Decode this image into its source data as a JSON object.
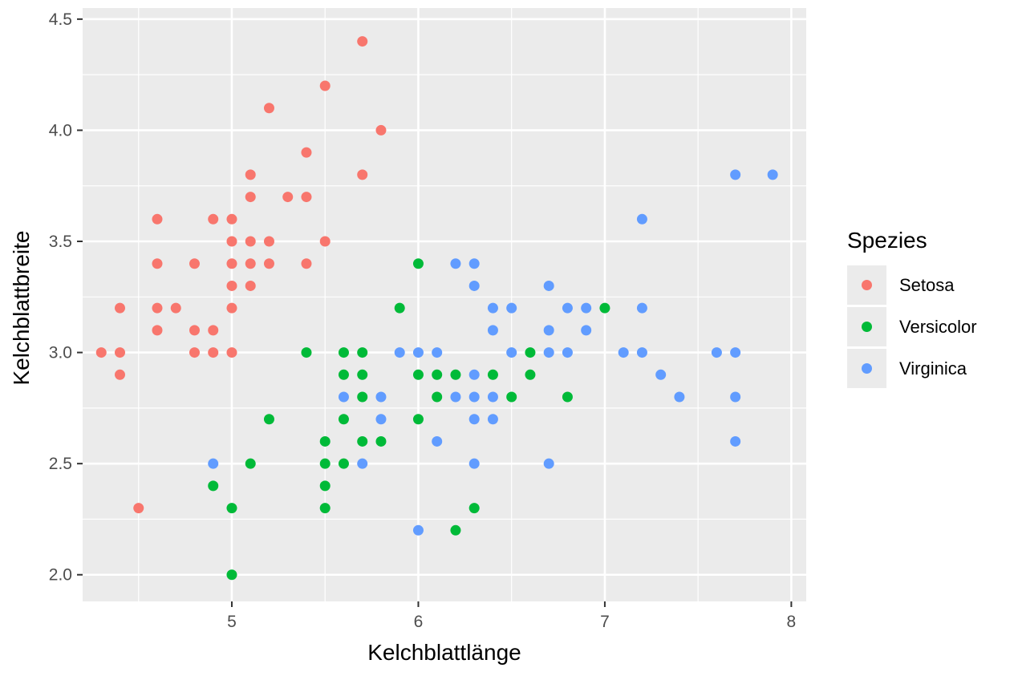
{
  "chart_data": {
    "type": "scatter",
    "xlabel": "Kelchblattlänge",
    "ylabel": "Kelchblattbreite",
    "xlim": [
      4.2,
      8.08
    ],
    "ylim": [
      1.88,
      4.55
    ],
    "x_ticks": [
      5,
      6,
      7,
      8
    ],
    "x_tick_labels": [
      "5",
      "6",
      "7",
      "8"
    ],
    "y_ticks": [
      2.0,
      2.5,
      3.0,
      3.5,
      4.0,
      4.5
    ],
    "y_tick_labels": [
      "2.0",
      "2.5",
      "3.0",
      "3.5",
      "4.0",
      "4.5"
    ],
    "grid": true,
    "panel_background": "#ebebeb",
    "legend": {
      "title": "Spezies",
      "placement": "right"
    },
    "series": [
      {
        "name": "Setosa",
        "color": "#f8766d",
        "points": [
          [
            4.3,
            3.0
          ],
          [
            4.4,
            2.9
          ],
          [
            4.4,
            3.0
          ],
          [
            4.4,
            3.2
          ],
          [
            4.5,
            2.3
          ],
          [
            4.6,
            3.1
          ],
          [
            4.6,
            3.2
          ],
          [
            4.6,
            3.4
          ],
          [
            4.6,
            3.6
          ],
          [
            4.7,
            3.2
          ],
          [
            4.8,
            3.0
          ],
          [
            4.8,
            3.1
          ],
          [
            4.8,
            3.4
          ],
          [
            4.9,
            3.0
          ],
          [
            4.9,
            3.1
          ],
          [
            4.9,
            3.6
          ],
          [
            5.0,
            3.0
          ],
          [
            5.0,
            3.2
          ],
          [
            5.0,
            3.3
          ],
          [
            5.0,
            3.4
          ],
          [
            5.0,
            3.5
          ],
          [
            5.0,
            3.6
          ],
          [
            5.1,
            3.3
          ],
          [
            5.1,
            3.4
          ],
          [
            5.1,
            3.5
          ],
          [
            5.1,
            3.7
          ],
          [
            5.1,
            3.8
          ],
          [
            5.2,
            3.4
          ],
          [
            5.2,
            3.5
          ],
          [
            5.2,
            4.1
          ],
          [
            5.3,
            3.7
          ],
          [
            5.4,
            3.4
          ],
          [
            5.4,
            3.7
          ],
          [
            5.4,
            3.9
          ],
          [
            5.5,
            3.5
          ],
          [
            5.5,
            4.2
          ],
          [
            5.7,
            3.8
          ],
          [
            5.7,
            4.4
          ],
          [
            5.8,
            4.0
          ]
        ]
      },
      {
        "name": "Versicolor",
        "color": "#00ba38",
        "points": [
          [
            4.9,
            2.4
          ],
          [
            5.0,
            2.0
          ],
          [
            5.0,
            2.3
          ],
          [
            5.1,
            2.5
          ],
          [
            5.2,
            2.7
          ],
          [
            5.4,
            3.0
          ],
          [
            5.5,
            2.3
          ],
          [
            5.5,
            2.4
          ],
          [
            5.5,
            2.5
          ],
          [
            5.5,
            2.6
          ],
          [
            5.6,
            2.5
          ],
          [
            5.6,
            2.7
          ],
          [
            5.6,
            2.9
          ],
          [
            5.6,
            3.0
          ],
          [
            5.7,
            2.6
          ],
          [
            5.7,
            2.8
          ],
          [
            5.7,
            2.9
          ],
          [
            5.7,
            3.0
          ],
          [
            5.8,
            2.6
          ],
          [
            5.9,
            3.2
          ],
          [
            6.0,
            2.7
          ],
          [
            6.0,
            2.9
          ],
          [
            6.0,
            3.4
          ],
          [
            6.1,
            2.8
          ],
          [
            6.1,
            2.9
          ],
          [
            6.2,
            2.2
          ],
          [
            6.2,
            2.9
          ],
          [
            6.3,
            2.3
          ],
          [
            6.4,
            2.9
          ],
          [
            6.5,
            2.8
          ],
          [
            6.6,
            2.9
          ],
          [
            6.6,
            3.0
          ],
          [
            6.8,
            2.8
          ],
          [
            7.0,
            3.2
          ]
        ]
      },
      {
        "name": "Virginica",
        "color": "#619cff",
        "points": [
          [
            4.9,
            2.5
          ],
          [
            5.6,
            2.8
          ],
          [
            5.7,
            2.5
          ],
          [
            5.8,
            2.7
          ],
          [
            5.8,
            2.8
          ],
          [
            5.9,
            3.0
          ],
          [
            6.0,
            2.2
          ],
          [
            6.0,
            3.0
          ],
          [
            6.1,
            2.6
          ],
          [
            6.1,
            3.0
          ],
          [
            6.2,
            2.8
          ],
          [
            6.2,
            3.4
          ],
          [
            6.3,
            2.5
          ],
          [
            6.3,
            2.7
          ],
          [
            6.3,
            2.8
          ],
          [
            6.3,
            2.9
          ],
          [
            6.3,
            3.3
          ],
          [
            6.3,
            3.4
          ],
          [
            6.4,
            2.7
          ],
          [
            6.4,
            2.8
          ],
          [
            6.4,
            3.1
          ],
          [
            6.4,
            3.2
          ],
          [
            6.5,
            3.0
          ],
          [
            6.5,
            3.2
          ],
          [
            6.7,
            2.5
          ],
          [
            6.7,
            3.0
          ],
          [
            6.7,
            3.1
          ],
          [
            6.7,
            3.3
          ],
          [
            6.8,
            3.0
          ],
          [
            6.8,
            3.2
          ],
          [
            6.9,
            3.1
          ],
          [
            6.9,
            3.2
          ],
          [
            7.1,
            3.0
          ],
          [
            7.2,
            3.0
          ],
          [
            7.2,
            3.2
          ],
          [
            7.2,
            3.6
          ],
          [
            7.3,
            2.9
          ],
          [
            7.4,
            2.8
          ],
          [
            7.6,
            3.0
          ],
          [
            7.7,
            2.6
          ],
          [
            7.7,
            2.8
          ],
          [
            7.7,
            3.0
          ],
          [
            7.7,
            3.8
          ],
          [
            7.9,
            3.8
          ]
        ]
      }
    ]
  }
}
